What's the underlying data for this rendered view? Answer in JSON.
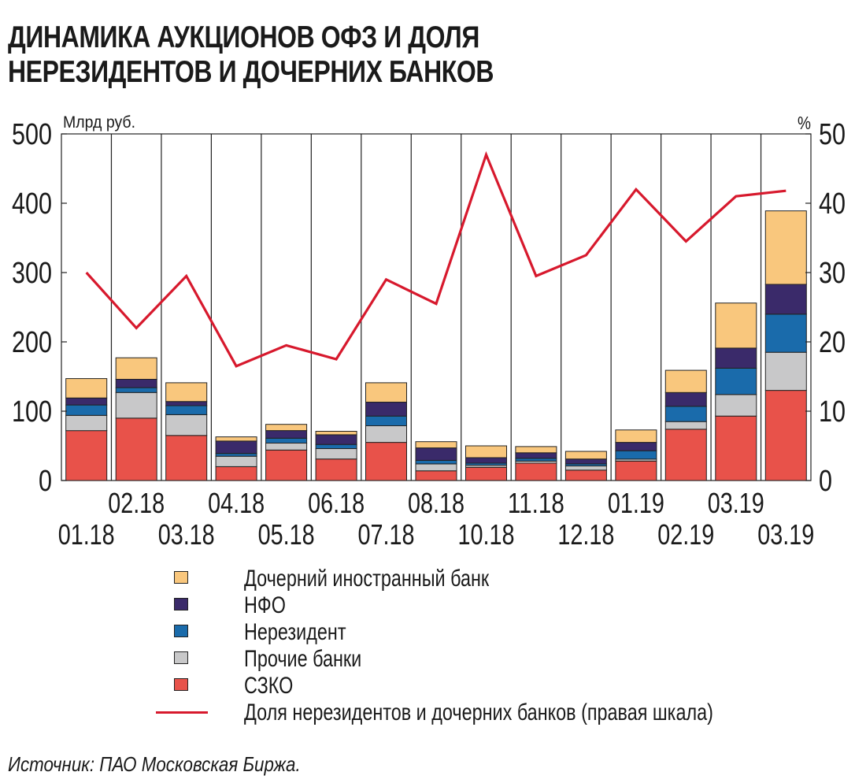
{
  "title_lines": [
    "ДИНАМИКА АУКЦИОНОВ ОФЗ И ДОЛЯ",
    "НЕРЕЗИДЕНТОВ И ДОЧЕРНИХ БАНКОВ"
  ],
  "source": "Источник: ПАО Московская Биржа.",
  "chart_data": {
    "type": "bar",
    "stacked": true,
    "left_unit": "Млрд руб.",
    "right_unit": "%",
    "ylim_left": [
      0,
      500
    ],
    "ylim_right": [
      0,
      50
    ],
    "yticks_left": [
      "0",
      "100",
      "200",
      "300",
      "400",
      "500"
    ],
    "yticks_right": [
      "0",
      "10",
      "20",
      "30",
      "40",
      "50"
    ],
    "grid": "vertical",
    "categories": [
      "01.18",
      "02.18",
      "03.18",
      "04.18",
      "05.18",
      "06.18",
      "07.18",
      "08.18",
      "10.18",
      "11.18",
      "12.18",
      "01.19",
      "02.19",
      "03.19",
      "03.19"
    ],
    "colors": {
      "szko": "#e8524a",
      "other_banks": "#c8c8c9",
      "nonresident": "#1a6bab",
      "nfo": "#3a2a6a",
      "foreign_sub_bank": "#f9c77d",
      "line": "#d7192d"
    },
    "series": [
      {
        "name": "СЗКО",
        "key": "szko",
        "values": [
          72,
          90,
          65,
          20,
          44,
          31,
          55,
          14,
          19,
          25,
          15,
          28,
          74,
          93,
          130
        ]
      },
      {
        "name": "Прочие банки",
        "key": "other_banks",
        "values": [
          22,
          37,
          30,
          15,
          10,
          15,
          24,
          10,
          3,
          3,
          6,
          3,
          11,
          31,
          55
        ]
      },
      {
        "name": "Нерезидент",
        "key": "nonresident",
        "values": [
          15,
          7,
          13,
          4,
          7,
          6,
          14,
          5,
          3,
          4,
          3,
          12,
          22,
          38,
          55
        ]
      },
      {
        "name": "НФО",
        "key": "nfo",
        "values": [
          10,
          12,
          6,
          18,
          11,
          14,
          20,
          18,
          8,
          8,
          7,
          12,
          20,
          29,
          43
        ]
      },
      {
        "name": "Дочерний иностранный банк",
        "key": "foreign_sub_bank",
        "values": [
          28,
          31,
          27,
          6,
          9,
          5,
          28,
          9,
          17,
          9,
          11,
          18,
          32,
          65,
          106
        ]
      }
    ],
    "line_series": {
      "name": "Доля нерезидентов и дочерних банков (правая шкала)",
      "key": "line",
      "values": [
        30,
        22,
        29.5,
        16.5,
        19.5,
        17.5,
        29,
        25.5,
        47,
        29.5,
        32.5,
        42,
        34.5,
        41,
        41.8
      ]
    },
    "legend_order": [
      "foreign_sub_bank",
      "nfo",
      "nonresident",
      "other_banks",
      "szko",
      "line"
    ]
  }
}
